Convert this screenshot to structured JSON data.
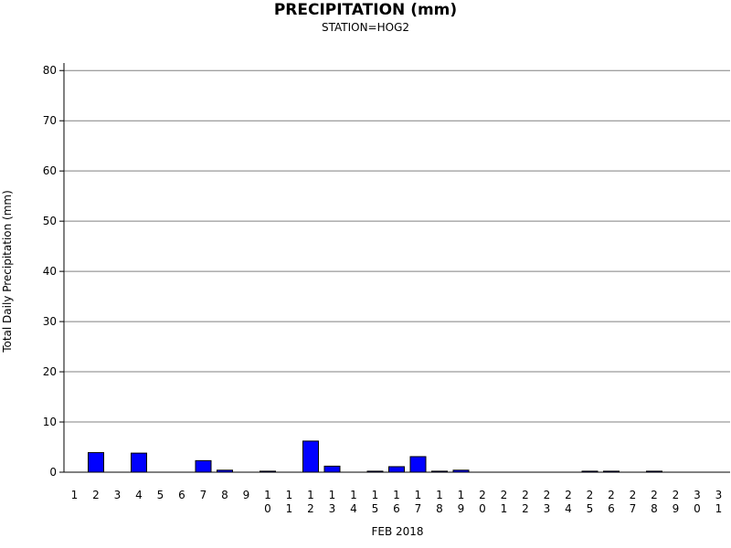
{
  "chart_data": {
    "type": "bar",
    "title": "PRECIPITATION (mm)",
    "subtitle": "STATION=HOG2",
    "xlabel": "FEB 2018",
    "ylabel": "Total Daily Precipitation (mm)",
    "ylim": [
      0,
      80
    ],
    "yticks": [
      0,
      10,
      20,
      30,
      40,
      50,
      60,
      70,
      80
    ],
    "grid": true,
    "categories": [
      "1",
      "2",
      "3",
      "4",
      "5",
      "6",
      "7",
      "8",
      "9",
      "10",
      "11",
      "12",
      "13",
      "14",
      "15",
      "16",
      "17",
      "18",
      "19",
      "20",
      "21",
      "22",
      "23",
      "24",
      "25",
      "26",
      "27",
      "28",
      "29",
      "30",
      "31"
    ],
    "values": [
      0,
      3.9,
      0,
      3.8,
      0,
      0,
      2.3,
      0.4,
      0,
      0.2,
      0,
      6.2,
      1.2,
      0,
      0.2,
      1.1,
      3.1,
      0.2,
      0.4,
      0,
      0,
      0,
      0,
      0,
      0.2,
      0.2,
      0,
      0.2,
      0,
      0,
      0
    ],
    "bar_color": "#0000ff",
    "grid_color": "#808080"
  }
}
